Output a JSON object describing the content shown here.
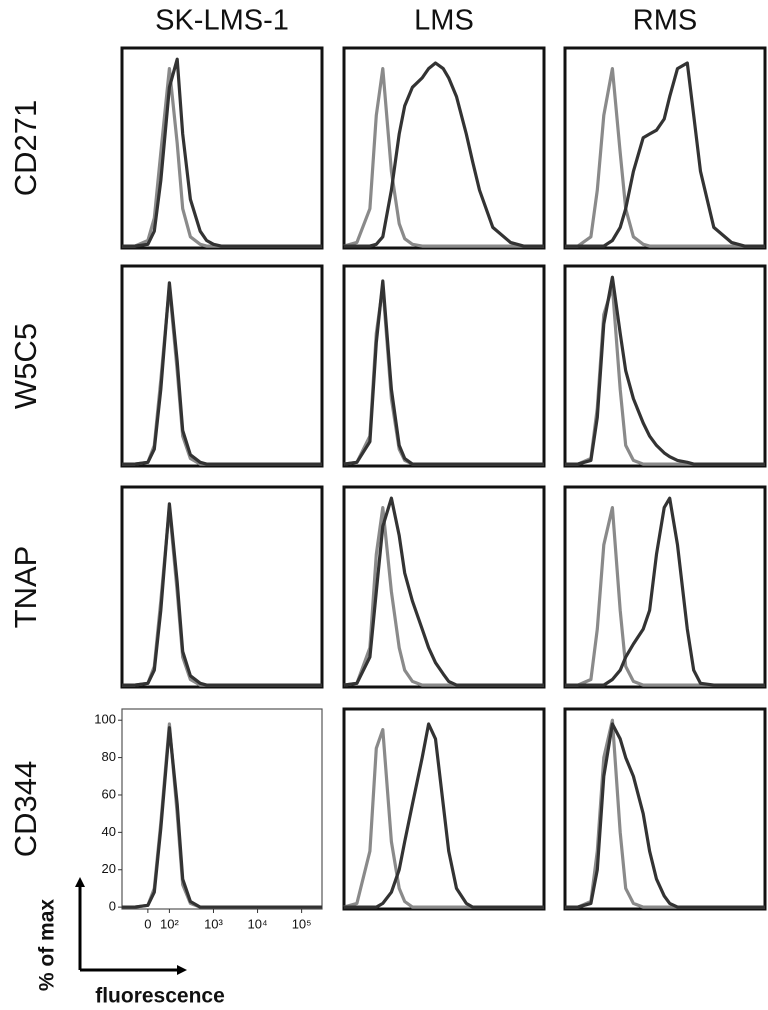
{
  "chart_data": {
    "type": "line",
    "columns": [
      "SK-LMS-1",
      "LMS",
      "RMS"
    ],
    "rows": [
      "CD271",
      "W5C5",
      "TNAP",
      "CD344"
    ],
    "xlabel": "fluorescence",
    "ylabel": "% of max",
    "xlim": [
      -120,
      290000
    ],
    "ylim": [
      -1,
      106
    ],
    "xticks": [
      0,
      {
        "value": 100,
        "label": "10²"
      },
      {
        "value": 1000,
        "label": "10³"
      },
      {
        "value": 10000,
        "label": "10⁴"
      },
      {
        "value": 100000,
        "label": "10⁵"
      }
    ],
    "yticks": [
      0,
      20,
      40,
      60,
      80,
      100
    ],
    "x": [
      -120,
      -60,
      0,
      30,
      60,
      100,
      150,
      200,
      300,
      500,
      700,
      1000,
      1500,
      2000,
      3000,
      5000,
      7000,
      10000,
      20000,
      50000,
      100000,
      290000
    ],
    "panels": [
      [
        {
          "series": [
            {
              "color": "#8a8a8a",
              "values": [
                0,
                0,
                3,
                15,
                50,
                95,
                55,
                20,
                5,
                1,
                0,
                0,
                0,
                0,
                0,
                0,
                0,
                0,
                0,
                0,
                0,
                0
              ]
            },
            {
              "color": "#333333",
              "values": [
                0,
                0,
                1,
                8,
                35,
                85,
                100,
                60,
                25,
                8,
                3,
                1,
                0,
                0,
                0,
                0,
                0,
                0,
                0,
                0,
                0,
                0
              ]
            }
          ]
        },
        {
          "series": [
            {
              "color": "#8a8a8a",
              "values": [
                0,
                2,
                20,
                70,
                95,
                40,
                12,
                4,
                1,
                0,
                0,
                0,
                0,
                0,
                0,
                0,
                0,
                0,
                0,
                0,
                0,
                0
              ]
            },
            {
              "color": "#333333",
              "values": [
                0,
                0,
                0,
                1,
                5,
                30,
                60,
                75,
                85,
                90,
                95,
                98,
                95,
                90,
                80,
                60,
                45,
                30,
                10,
                2,
                0,
                0
              ]
            }
          ]
        },
        {
          "series": [
            {
              "color": "#8a8a8a",
              "values": [
                0,
                0,
                5,
                30,
                70,
                95,
                50,
                20,
                5,
                1,
                0,
                0,
                0,
                0,
                0,
                0,
                0,
                0,
                0,
                0,
                0,
                0
              ]
            },
            {
              "color": "#333333",
              "values": [
                0,
                0,
                0,
                0,
                0,
                3,
                10,
                20,
                40,
                58,
                60,
                62,
                68,
                80,
                95,
                98,
                70,
                40,
                10,
                2,
                0,
                0
              ]
            }
          ]
        }
      ],
      [
        {
          "series": [
            {
              "color": "#8a8a8a",
              "values": [
                0,
                0,
                1,
                10,
                45,
                95,
                50,
                15,
                3,
                0,
                0,
                0,
                0,
                0,
                0,
                0,
                0,
                0,
                0,
                0,
                0,
                0
              ]
            },
            {
              "color": "#333333",
              "values": [
                0,
                0,
                1,
                8,
                40,
                97,
                55,
                18,
                5,
                1,
                0,
                0,
                0,
                0,
                0,
                0,
                0,
                0,
                0,
                0,
                0,
                0
              ]
            }
          ]
        },
        {
          "series": [
            {
              "color": "#8a8a8a",
              "values": [
                0,
                1,
                15,
                70,
                95,
                35,
                8,
                2,
                0,
                0,
                0,
                0,
                0,
                0,
                0,
                0,
                0,
                0,
                0,
                0,
                0,
                0
              ]
            },
            {
              "color": "#333333",
              "values": [
                0,
                1,
                12,
                65,
                98,
                40,
                10,
                3,
                0,
                0,
                0,
                0,
                0,
                0,
                0,
                0,
                0,
                0,
                0,
                0,
                0,
                0
              ]
            }
          ]
        },
        {
          "series": [
            {
              "color": "#8a8a8a",
              "values": [
                0,
                0,
                3,
                30,
                80,
                95,
                40,
                10,
                2,
                0,
                0,
                0,
                0,
                0,
                0,
                0,
                0,
                0,
                0,
                0,
                0,
                0
              ]
            },
            {
              "color": "#333333",
              "values": [
                0,
                0,
                2,
                25,
                75,
                100,
                70,
                50,
                35,
                22,
                15,
                10,
                6,
                4,
                2,
                1,
                0,
                0,
                0,
                0,
                0,
                0
              ]
            }
          ]
        }
      ],
      [
        {
          "series": [
            {
              "color": "#8a8a8a",
              "values": [
                0,
                0,
                1,
                10,
                45,
                95,
                50,
                15,
                3,
                0,
                0,
                0,
                0,
                0,
                0,
                0,
                0,
                0,
                0,
                0,
                0,
                0
              ]
            },
            {
              "color": "#333333",
              "values": [
                0,
                0,
                1,
                8,
                40,
                97,
                55,
                18,
                5,
                1,
                0,
                0,
                0,
                0,
                0,
                0,
                0,
                0,
                0,
                0,
                0,
                0
              ]
            }
          ]
        },
        {
          "series": [
            {
              "color": "#8a8a8a",
              "values": [
                0,
                1,
                20,
                70,
                95,
                50,
                20,
                8,
                2,
                0,
                0,
                0,
                0,
                0,
                0,
                0,
                0,
                0,
                0,
                0,
                0,
                0
              ]
            },
            {
              "color": "#333333",
              "values": [
                0,
                1,
                15,
                50,
                85,
                100,
                80,
                60,
                45,
                30,
                20,
                12,
                6,
                2,
                0,
                0,
                0,
                0,
                0,
                0,
                0,
                0
              ]
            }
          ]
        },
        {
          "series": [
            {
              "color": "#8a8a8a",
              "values": [
                0,
                0,
                3,
                30,
                75,
                95,
                40,
                10,
                2,
                0,
                0,
                0,
                0,
                0,
                0,
                0,
                0,
                0,
                0,
                0,
                0,
                0
              ]
            },
            {
              "color": "#333333",
              "values": [
                0,
                0,
                0,
                0,
                0,
                3,
                8,
                15,
                22,
                30,
                40,
                70,
                95,
                100,
                75,
                30,
                8,
                1,
                0,
                0,
                0,
                0
              ]
            }
          ]
        }
      ],
      [
        {
          "series": [
            {
              "color": "#8a8a8a",
              "values": [
                0,
                0,
                1,
                10,
                45,
                98,
                50,
                12,
                2,
                0,
                0,
                0,
                0,
                0,
                0,
                0,
                0,
                0,
                0,
                0,
                0,
                0
              ]
            },
            {
              "color": "#333333",
              "values": [
                0,
                0,
                1,
                8,
                42,
                96,
                55,
                15,
                3,
                0,
                0,
                0,
                0,
                0,
                0,
                0,
                0,
                0,
                0,
                0,
                0,
                0
              ]
            }
          ]
        },
        {
          "series": [
            {
              "color": "#8a8a8a",
              "values": [
                0,
                2,
                30,
                85,
                95,
                35,
                10,
                3,
                0,
                0,
                0,
                0,
                0,
                0,
                0,
                0,
                0,
                0,
                0,
                0,
                0,
                0
              ]
            },
            {
              "color": "#333333",
              "values": [
                0,
                0,
                0,
                0,
                2,
                8,
                20,
                35,
                55,
                80,
                98,
                90,
                55,
                30,
                10,
                2,
                0,
                0,
                0,
                0,
                0,
                0
              ]
            }
          ]
        },
        {
          "series": [
            {
              "color": "#8a8a8a",
              "values": [
                0,
                0,
                3,
                30,
                80,
                100,
                40,
                10,
                2,
                0,
                0,
                0,
                0,
                0,
                0,
                0,
                0,
                0,
                0,
                0,
                0,
                0
              ]
            },
            {
              "color": "#333333",
              "values": [
                0,
                0,
                2,
                20,
                70,
                98,
                90,
                80,
                70,
                50,
                30,
                15,
                6,
                2,
                0,
                0,
                0,
                0,
                0,
                0,
                0,
                0
              ]
            }
          ]
        }
      ]
    ]
  }
}
